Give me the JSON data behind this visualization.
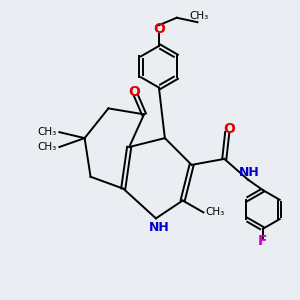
{
  "bg_color": "#eaeef2",
  "bond_color": "#000000",
  "N_color": "#0000cc",
  "O_color": "#dd0000",
  "F_color": "#cc00cc",
  "bond_width": 1.4,
  "dbo": 0.055,
  "xlim": [
    0,
    10
  ],
  "ylim": [
    0,
    10
  ]
}
